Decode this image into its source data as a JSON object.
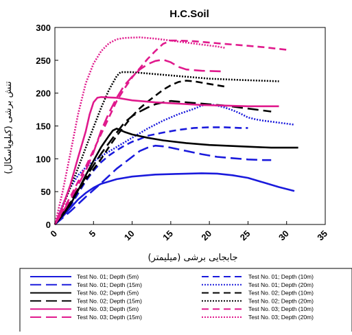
{
  "chart_data": {
    "type": "line",
    "title": "H.C.Soil",
    "xlabel": "جابجایی برشی (میلیمتر)",
    "ylabel": "تنش برشی (کیلوپاسکال)",
    "xlim": [
      0,
      35
    ],
    "ylim": [
      0,
      300
    ],
    "xticks": [
      "0",
      "5",
      "10",
      "15",
      "20",
      "25",
      "30",
      "35"
    ],
    "yticks": [
      "0",
      "50",
      "100",
      "150",
      "200",
      "250",
      "300"
    ],
    "grid": false,
    "legend_position": "bottom",
    "series": [
      {
        "name": "Test No. 01; Depth (5m)",
        "color": "#1a1adc",
        "dash": "solid",
        "points": [
          [
            0,
            0
          ],
          [
            1,
            12
          ],
          [
            2,
            25
          ],
          [
            3,
            38
          ],
          [
            4,
            48
          ],
          [
            5,
            56
          ],
          [
            6,
            62
          ],
          [
            8,
            69
          ],
          [
            10,
            73
          ],
          [
            13,
            76
          ],
          [
            16,
            77
          ],
          [
            19,
            78
          ],
          [
            21,
            77.5
          ],
          [
            23,
            75
          ],
          [
            25,
            71
          ],
          [
            27,
            64
          ],
          [
            29,
            57
          ],
          [
            31,
            51
          ]
        ]
      },
      {
        "name": "Test No. 01; Depth (10m)",
        "color": "#1a1adc",
        "dash": "dashed",
        "points": [
          [
            0,
            0
          ],
          [
            1,
            12
          ],
          [
            2,
            28
          ],
          [
            3,
            47
          ],
          [
            4,
            66
          ],
          [
            5,
            82
          ],
          [
            6,
            95
          ],
          [
            7,
            105
          ],
          [
            8,
            113
          ],
          [
            9,
            120
          ],
          [
            10,
            126
          ],
          [
            11,
            130
          ],
          [
            12,
            135
          ],
          [
            14,
            140
          ],
          [
            16,
            144
          ],
          [
            18,
            147
          ],
          [
            20,
            148
          ],
          [
            22,
            148
          ],
          [
            24,
            147
          ],
          [
            25,
            147
          ]
        ]
      },
      {
        "name": "Test No. 01; Depth (15m)",
        "color": "#1a1adc",
        "dash": "longdash",
        "points": [
          [
            0,
            0
          ],
          [
            2,
            20
          ],
          [
            4,
            42
          ],
          [
            6,
            63
          ],
          [
            8,
            85
          ],
          [
            10,
            103
          ],
          [
            11,
            112
          ],
          [
            12,
            117
          ],
          [
            13,
            120
          ],
          [
            14,
            119
          ],
          [
            15,
            117
          ],
          [
            17,
            112
          ],
          [
            19,
            107
          ],
          [
            21,
            103
          ],
          [
            23,
            101
          ],
          [
            25,
            99
          ],
          [
            27,
            98
          ],
          [
            28,
            98
          ]
        ]
      },
      {
        "name": "Test No. 01; Depth (20m)",
        "color": "#1a1adc",
        "dash": "dotted",
        "points": [
          [
            0,
            0
          ],
          [
            1,
            30
          ],
          [
            2,
            56
          ],
          [
            3,
            75
          ],
          [
            4,
            87
          ],
          [
            5,
            96
          ],
          [
            6,
            104
          ],
          [
            8,
            118
          ],
          [
            10,
            132
          ],
          [
            12,
            146
          ],
          [
            14,
            158
          ],
          [
            16,
            168
          ],
          [
            18,
            176
          ],
          [
            19,
            181
          ],
          [
            20,
            183
          ],
          [
            21,
            181
          ],
          [
            22,
            178
          ],
          [
            23,
            174
          ],
          [
            24,
            169
          ],
          [
            25,
            163
          ],
          [
            26,
            160
          ],
          [
            27,
            158
          ],
          [
            29,
            155
          ],
          [
            31,
            152
          ]
        ]
      },
      {
        "name": "Test No. 02; Depth (5m)",
        "color": "#000000",
        "dash": "solid",
        "points": [
          [
            0,
            0
          ],
          [
            1,
            14
          ],
          [
            2,
            30
          ],
          [
            3,
            52
          ],
          [
            4,
            75
          ],
          [
            5,
            97
          ],
          [
            6,
            118
          ],
          [
            7,
            135
          ],
          [
            7.5,
            143
          ],
          [
            8,
            146
          ],
          [
            9,
            141
          ],
          [
            10,
            137
          ],
          [
            12,
            132
          ],
          [
            14,
            128
          ],
          [
            17,
            124
          ],
          [
            20,
            121
          ],
          [
            24,
            119
          ],
          [
            28,
            117
          ],
          [
            31.5,
            117
          ]
        ]
      },
      {
        "name": "Test No. 02; Depth (10m)",
        "color": "#000000",
        "dash": "dashed",
        "points": [
          [
            0,
            0
          ],
          [
            2,
            33
          ],
          [
            4,
            68
          ],
          [
            6,
            100
          ],
          [
            7,
            118
          ],
          [
            8,
            135
          ],
          [
            9,
            150
          ],
          [
            10,
            165
          ],
          [
            11,
            177
          ],
          [
            12,
            187
          ],
          [
            13,
            196
          ],
          [
            14,
            205
          ],
          [
            15,
            212
          ],
          [
            16,
            217
          ],
          [
            17,
            219
          ],
          [
            18,
            218
          ],
          [
            20,
            214
          ],
          [
            22,
            210
          ]
        ]
      },
      {
        "name": "Test No. 02; Depth (15m)",
        "color": "#000000",
        "dash": "longdash",
        "points": [
          [
            0,
            0
          ],
          [
            2,
            35
          ],
          [
            4,
            72
          ],
          [
            6,
            108
          ],
          [
            8,
            140
          ],
          [
            9,
            155
          ],
          [
            10,
            165
          ],
          [
            11,
            172
          ],
          [
            12,
            178
          ],
          [
            13,
            183
          ],
          [
            14,
            186
          ],
          [
            15,
            188
          ],
          [
            16,
            187
          ],
          [
            18,
            185
          ],
          [
            20,
            183
          ],
          [
            22,
            181
          ],
          [
            24,
            178
          ],
          [
            26,
            175
          ],
          [
            28,
            172
          ]
        ]
      },
      {
        "name": "Test No. 02; Depth (20m)",
        "color": "#000000",
        "dash": "dotted",
        "points": [
          [
            0,
            0
          ],
          [
            1,
            27
          ],
          [
            2,
            56
          ],
          [
            3,
            86
          ],
          [
            4,
            117
          ],
          [
            5,
            148
          ],
          [
            6,
            178
          ],
          [
            7,
            205
          ],
          [
            8,
            226
          ],
          [
            8.5,
            232
          ],
          [
            10,
            232
          ],
          [
            12,
            230
          ],
          [
            14,
            228
          ],
          [
            17,
            225
          ],
          [
            20,
            222
          ],
          [
            24,
            220
          ],
          [
            29,
            218
          ]
        ]
      },
      {
        "name": "Test No. 03; Depth (5m)",
        "color": "#e0198c",
        "dash": "solid",
        "points": [
          [
            0,
            0
          ],
          [
            1,
            28
          ],
          [
            2,
            60
          ],
          [
            3,
            102
          ],
          [
            4,
            142
          ],
          [
            4.5,
            168
          ],
          [
            5,
            186
          ],
          [
            5.5,
            193
          ],
          [
            6,
            194
          ],
          [
            8,
            193
          ],
          [
            10,
            189
          ],
          [
            13,
            186
          ],
          [
            16,
            184
          ],
          [
            19,
            182
          ],
          [
            22,
            181
          ],
          [
            25,
            180
          ],
          [
            29,
            180
          ]
        ]
      },
      {
        "name": "Test No. 03; Depth (10m)",
        "color": "#e0198c",
        "dash": "dashed",
        "points": [
          [
            0,
            0
          ],
          [
            2,
            42
          ],
          [
            4,
            88
          ],
          [
            6,
            138
          ],
          [
            8,
            188
          ],
          [
            9,
            207
          ],
          [
            10,
            224
          ],
          [
            11,
            238
          ],
          [
            12,
            252
          ],
          [
            13,
            264
          ],
          [
            14,
            275
          ],
          [
            15,
            280
          ],
          [
            16,
            280
          ],
          [
            18,
            279
          ],
          [
            21,
            276
          ],
          [
            24,
            273
          ],
          [
            27,
            270
          ],
          [
            30,
            266
          ]
        ]
      },
      {
        "name": "Test No. 03; Depth (15m)",
        "color": "#e0198c",
        "dash": "longdash",
        "points": [
          [
            0,
            0
          ],
          [
            2,
            38
          ],
          [
            4,
            82
          ],
          [
            5,
            110
          ],
          [
            6,
            143
          ],
          [
            7,
            170
          ],
          [
            8,
            193
          ],
          [
            9,
            212
          ],
          [
            10,
            225
          ],
          [
            11,
            236
          ],
          [
            12,
            244
          ],
          [
            13,
            249
          ],
          [
            14,
            251
          ],
          [
            15,
            247
          ],
          [
            16,
            240
          ],
          [
            17,
            236
          ],
          [
            19,
            234
          ],
          [
            22,
            233
          ]
        ]
      },
      {
        "name": "Test No. 03; Depth (20m)",
        "color": "#e0198c",
        "dash": "dotted",
        "points": [
          [
            0,
            0
          ],
          [
            1,
            50
          ],
          [
            2,
            108
          ],
          [
            3,
            168
          ],
          [
            4,
            215
          ],
          [
            5,
            245
          ],
          [
            6,
            264
          ],
          [
            7,
            276
          ],
          [
            8,
            282
          ],
          [
            9,
            284
          ],
          [
            11,
            285
          ],
          [
            13,
            283
          ],
          [
            15,
            280
          ],
          [
            17,
            277
          ],
          [
            19,
            274
          ],
          [
            21,
            271
          ],
          [
            22,
            269
          ]
        ]
      }
    ]
  }
}
